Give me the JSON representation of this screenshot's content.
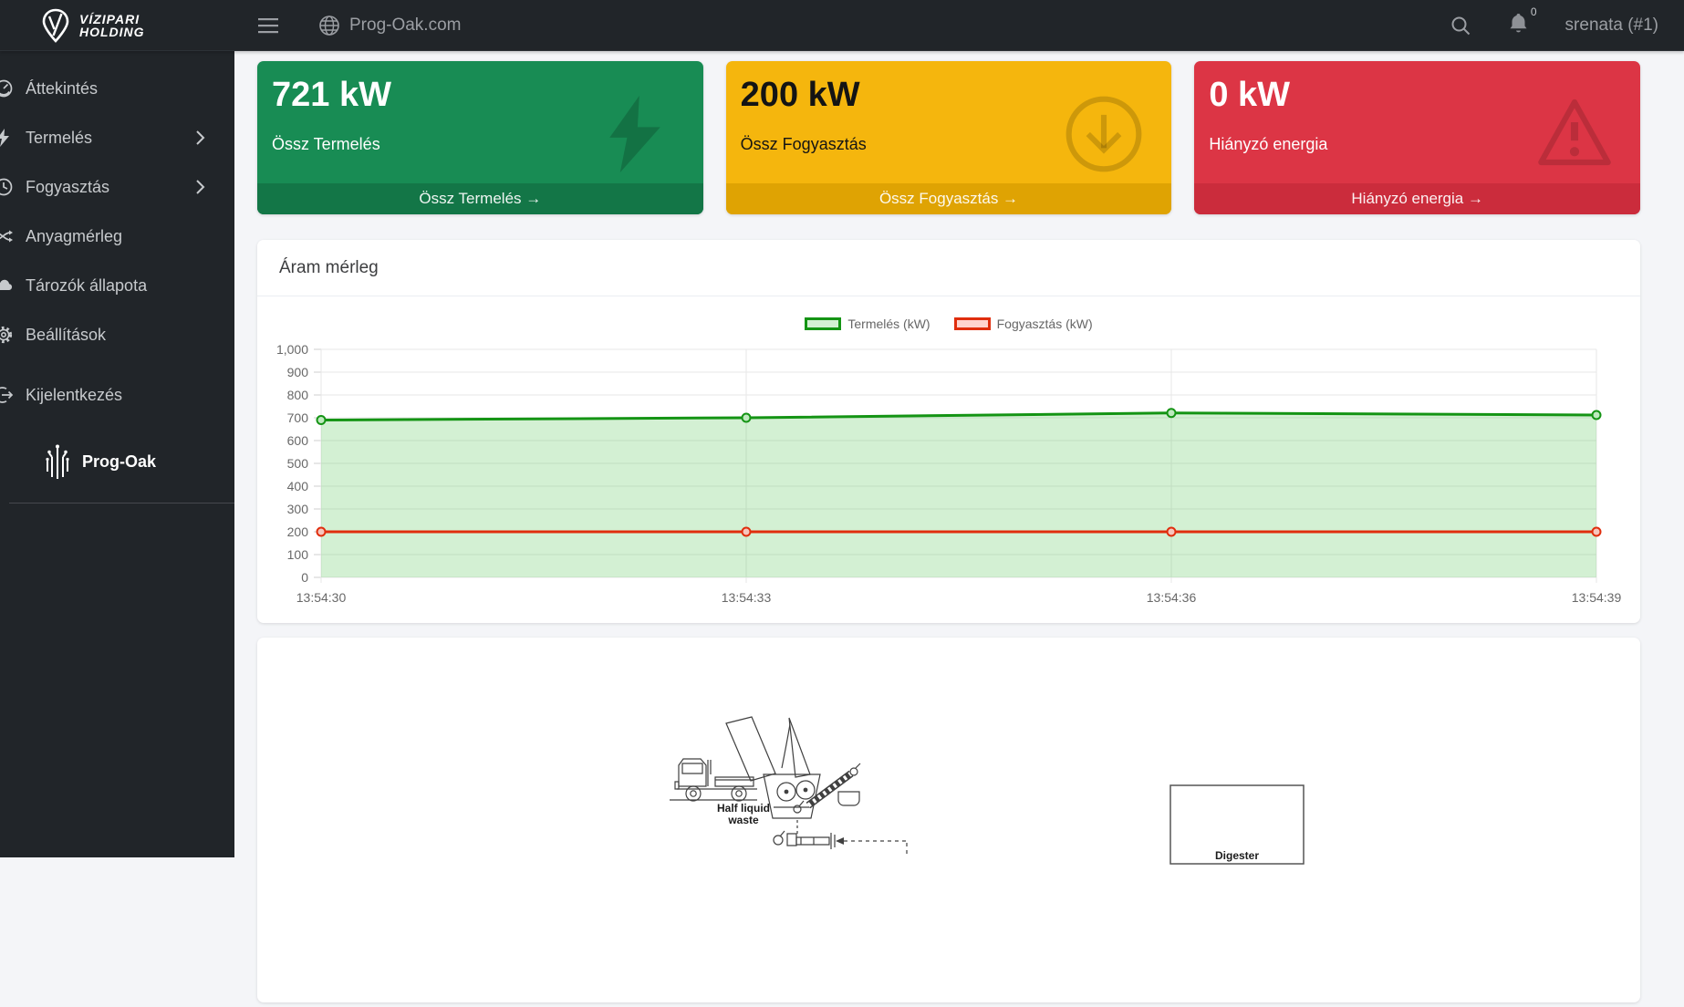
{
  "brand": {
    "line1": "VÍZIPARI",
    "line2": "HOLDING"
  },
  "topbar": {
    "site_name": "Prog-Oak.com",
    "notification_count": "0",
    "username": "srenata (#1)"
  },
  "sidebar": {
    "items": [
      {
        "label": "Áttekintés"
      },
      {
        "label": "Termelés"
      },
      {
        "label": "Fogyasztás"
      },
      {
        "label": "Anyagmérleg"
      },
      {
        "label": "Tározók állapota"
      },
      {
        "label": "Beállítások"
      }
    ],
    "logout_label": "Kijelentkezés",
    "footer_brand": "Prog-Oak"
  },
  "kpi_cards": [
    {
      "value": "721 kW",
      "label": "Össz Termelés",
      "footer": "Össz Termelés →",
      "bg": "#188C54",
      "footer_bg": "#137647"
    },
    {
      "value": "200 kW",
      "label": "Össz Fogyasztás",
      "footer": "Össz Fogyasztás →",
      "bg": "#F5B60D",
      "footer_bg": "#DFA303"
    },
    {
      "value": "0 kW",
      "label": "Hiányzó energia",
      "footer": "Hiányzó energia →",
      "bg": "#DC3545",
      "footer_bg": "#CB2C3C"
    }
  ],
  "chart_card": {
    "title": "Áram mérleg"
  },
  "chart_data": {
    "type": "line",
    "x": [
      "13:54:30",
      "13:54:33",
      "13:54:36",
      "13:54:39"
    ],
    "series": [
      {
        "name": "Termelés (kW)",
        "values": [
          690,
          700,
          721,
          712
        ],
        "color": "#149414",
        "fill": "rgba(96,200,96,0.28)",
        "legend_fill": "rgba(96,200,96,0.28)",
        "marker_fill": "#bfe9bf"
      },
      {
        "name": "Fogyasztás (kW)",
        "values": [
          200,
          200,
          200,
          200
        ],
        "color": "#E02D0D",
        "fill": "none",
        "legend_fill": "rgba(255,80,60,0.25)",
        "marker_fill": "#f6c6bd"
      }
    ],
    "ylim": [
      0,
      1000
    ],
    "ytick_step": 100,
    "legend_position": "top",
    "grid": true,
    "title": "Áram mérleg",
    "xlabel": "",
    "ylabel": ""
  },
  "diagram": {
    "label_waste_line1": "Half liquid",
    "label_waste_line2": "waste",
    "label_digester": "Digester"
  }
}
